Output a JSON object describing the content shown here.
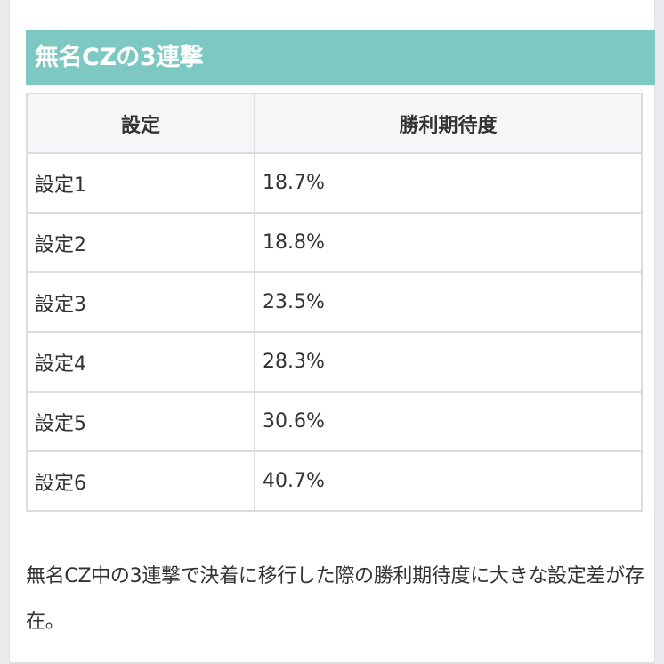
{
  "heading": "無名CZの3連撃",
  "table": {
    "headers": [
      "設定",
      "勝利期待度"
    ],
    "rows": [
      {
        "setting": "設定1",
        "rate": "18.7%"
      },
      {
        "setting": "設定2",
        "rate": "18.8%"
      },
      {
        "setting": "設定3",
        "rate": "23.5%"
      },
      {
        "setting": "設定4",
        "rate": "28.3%"
      },
      {
        "setting": "設定5",
        "rate": "30.6%"
      },
      {
        "setting": "設定6",
        "rate": "40.7%"
      }
    ]
  },
  "note": "無名CZ中の3連撃で決着に移行した際の勝利期待度に大きな設定差が存在。",
  "colors": {
    "heading_bg": "#7dc8c2",
    "heading_text": "#ffffff",
    "header_bg": "#f6f6f9",
    "border": "#dcdce0",
    "text": "#333333"
  }
}
